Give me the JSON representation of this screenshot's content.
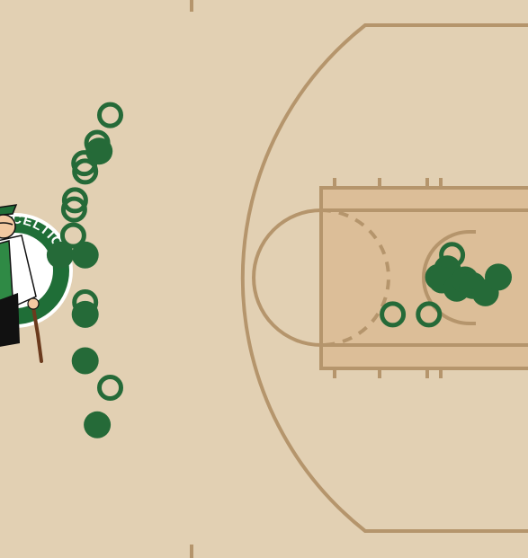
{
  "team": {
    "logo_text": "CELTICS",
    "logo_icon": "celtics-leprechaun-logo-icon"
  },
  "colors": {
    "court": "#e2d0b3",
    "paint": "#dcbe98",
    "lines": "#b5956c",
    "shot": "#256a38"
  },
  "chart_data": {
    "type": "scatter",
    "title": "",
    "xlabel": "",
    "ylabel": "",
    "legend": "none",
    "marker_legend": {
      "filled": "made",
      "hollow": "missed"
    },
    "x_range_ft": [
      -13.6,
      32
    ],
    "y_range_ft": [
      -25,
      25
    ],
    "basket_ft": [
      26.5,
      0
    ],
    "shots": [
      {
        "x": -4.08,
        "y": -14.69,
        "made": false
      },
      {
        "x": -5.2,
        "y": -12.2,
        "made": false
      },
      {
        "x": -5.04,
        "y": -11.46,
        "made": true
      },
      {
        "x": -6.32,
        "y": -10.38,
        "made": false
      },
      {
        "x": -6.24,
        "y": -9.63,
        "made": false
      },
      {
        "x": -7.12,
        "y": -7.05,
        "made": false
      },
      {
        "x": -7.2,
        "y": -6.23,
        "made": false
      },
      {
        "x": -7.28,
        "y": -3.9,
        "made": false
      },
      {
        "x": -8.4,
        "y": -2.15,
        "made": true
      },
      {
        "x": -6.24,
        "y": -2.15,
        "made": true
      },
      {
        "x": -6.24,
        "y": 2.09,
        "made": false
      },
      {
        "x": -6.24,
        "y": 3.17,
        "made": true
      },
      {
        "x": -6.24,
        "y": 7.33,
        "made": true
      },
      {
        "x": -4.08,
        "y": 9.74,
        "made": false
      },
      {
        "x": -5.2,
        "y": 13.07,
        "made": true
      },
      {
        "x": 20.32,
        "y": 3.17,
        "made": false
      },
      {
        "x": 23.44,
        "y": 3.17,
        "made": false
      },
      {
        "x": 24.24,
        "y": -0.17,
        "made": false
      },
      {
        "x": 25.44,
        "y": -2.15,
        "made": false
      },
      {
        "x": 25.04,
        "y": -0.91,
        "made": true
      },
      {
        "x": 24.56,
        "y": 0.08,
        "made": true
      },
      {
        "x": 25.84,
        "y": 0.83,
        "made": true
      },
      {
        "x": 26.56,
        "y": 0.08,
        "made": true
      },
      {
        "x": 27.2,
        "y": 0.58,
        "made": true
      },
      {
        "x": 28.32,
        "y": 1.24,
        "made": true
      },
      {
        "x": 29.44,
        "y": -0.17,
        "made": true
      }
    ]
  }
}
